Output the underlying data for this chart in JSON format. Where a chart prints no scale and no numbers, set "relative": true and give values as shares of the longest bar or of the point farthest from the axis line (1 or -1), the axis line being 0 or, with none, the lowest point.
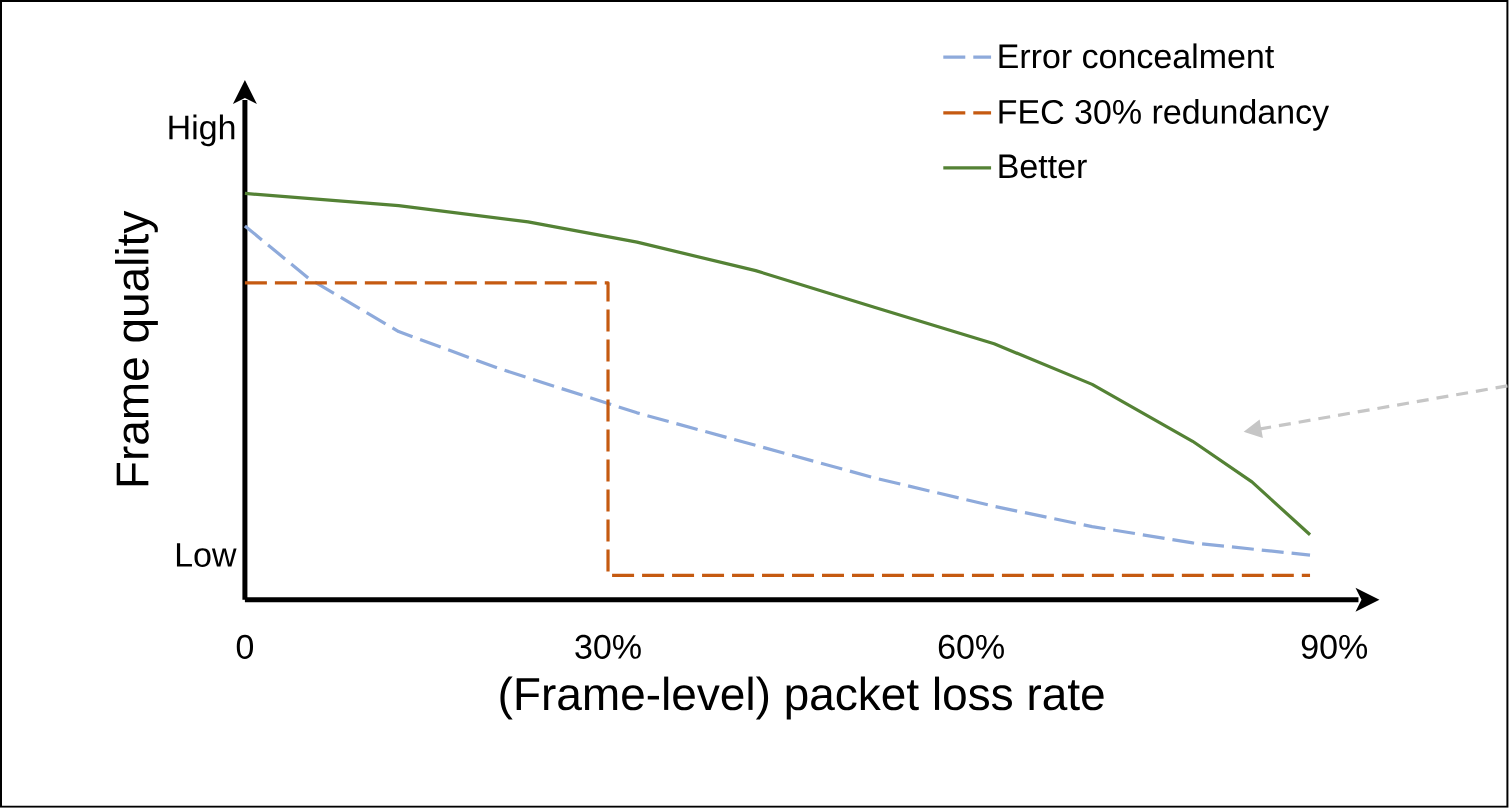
{
  "chart_data": {
    "type": "line",
    "relative": true,
    "xlabel": "(Frame-level) packet loss rate",
    "ylabel": "Frame quality",
    "annotations": [
      "High",
      "Low"
    ],
    "xlim": [
      0,
      92
    ],
    "xticks": [
      0,
      {
        "value": 30,
        "label": "30%"
      },
      {
        "value": 60,
        "label": "60%"
      },
      {
        "value": 90,
        "label": "90%"
      }
    ],
    "legend": "top right",
    "series": [
      {
        "name": "Error concealment",
        "color": "#8eaadb",
        "line_style": "dashed",
        "x": [
          0,
          5.3,
          12.7,
          20.9,
          32.4,
          42.2,
          52,
          61.9,
          70,
          78.3,
          88
        ],
        "values": [
          0.92,
          0.79,
          0.66,
          0.57,
          0.46,
          0.38,
          0.3,
          0.23,
          0.18,
          0.14,
          0.11
        ]
      },
      {
        "name": "FEC 30% redundancy",
        "color": "#c55a11",
        "line_style": "dashed",
        "type": "step",
        "x": [
          0,
          30,
          88
        ],
        "values": [
          0.78,
          0.06,
          0.06
        ]
      },
      {
        "name": "Better",
        "color": "#548235",
        "line_style": "solid",
        "x": [
          0,
          12.7,
          23.4,
          32.4,
          42.2,
          52,
          61.9,
          70,
          78.3,
          83.2,
          88
        ],
        "values": [
          1,
          0.97,
          0.93,
          0.88,
          0.81,
          0.72,
          0.63,
          0.53,
          0.39,
          0.29,
          0.16
        ]
      }
    ]
  }
}
